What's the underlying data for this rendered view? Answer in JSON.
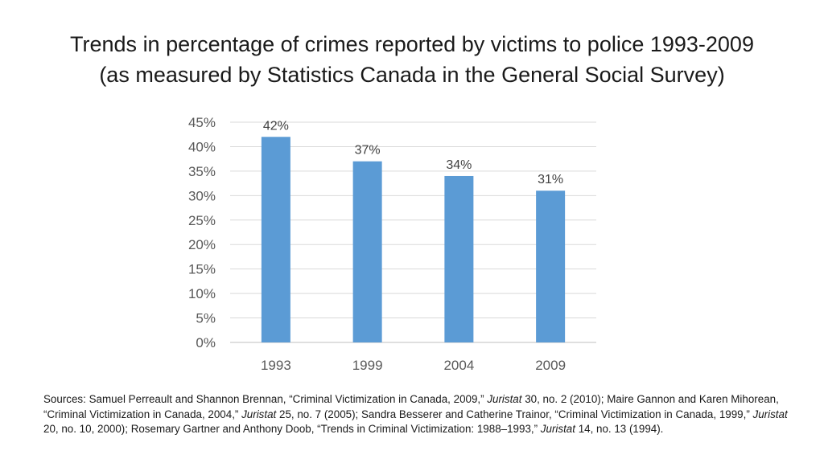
{
  "title": {
    "line1": "Trends in percentage of crimes reported by victims to police 1993-2009",
    "line2": "(as measured by Statistics Canada in the General Social Survey)"
  },
  "chart_data": {
    "type": "bar",
    "categories": [
      "1993",
      "1999",
      "2004",
      "2009"
    ],
    "values": [
      42,
      37,
      34,
      31
    ],
    "data_labels": [
      "42%",
      "37%",
      "34%",
      "31%"
    ],
    "y_ticks": [
      "0%",
      "5%",
      "10%",
      "15%",
      "20%",
      "25%",
      "30%",
      "35%",
      "40%",
      "45%"
    ],
    "ylim": [
      0,
      45
    ],
    "ytick_step": 5,
    "grid": true,
    "legend": "none",
    "bar_color": "#5b9bd5"
  },
  "sources": {
    "s1a": "Sources: Samuel Perreault and Shannon Brennan, “Criminal Victimization in Canada, 2009,” ",
    "s1j": "Juristat",
    "s1b": " 30, no. 2 (2010);  Maire Gannon and Karen Mihorean, “Criminal Victimization in Canada, 2004,” ",
    "s2j": "Juristat",
    "s2b": " 25, no. 7 (2005);  Sandra Besserer  and Catherine Trainor, “Criminal Victimization in Canada, 1999,” ",
    "s3j": "Juristat",
    "s3b": " 20, no. 10, 2000);   Rosemary Gartner and Anthony Doob, “Trends in Criminal Victimization: 1988–1993,” ",
    "s4j": "Juristat",
    "s4b": " 14, no. 13 (1994)."
  }
}
